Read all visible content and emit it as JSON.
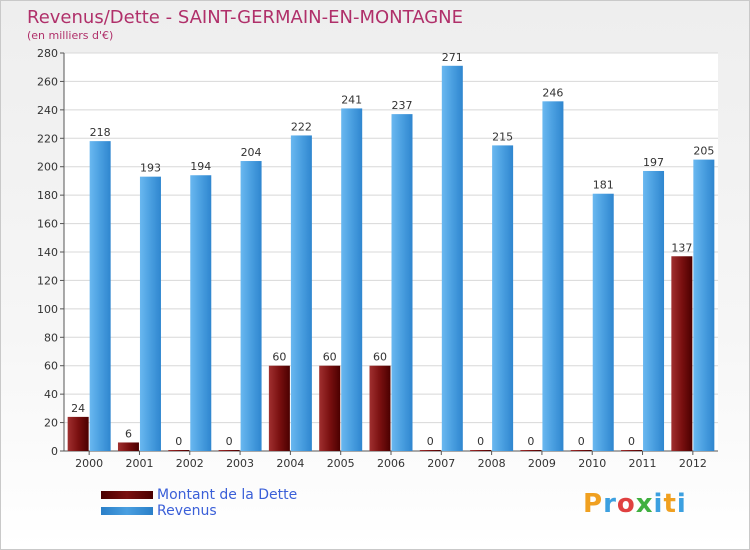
{
  "header": {
    "title": "Revenus/Dette - SAINT-GERMAIN-EN-MONTAGNE",
    "subtitle": "(en milliers d'€)"
  },
  "colors": {
    "dette": "#7a1010",
    "revenus": "#4a9fe0",
    "title": "#b0306a",
    "legend_text": "#3a5fd8"
  },
  "chart_data": {
    "type": "bar",
    "title": "Revenus/Dette - SAINT-GERMAIN-EN-MONTAGNE",
    "subtitle": "(en milliers d'€)",
    "categories": [
      "2000",
      "2001",
      "2002",
      "2003",
      "2004",
      "2005",
      "2006",
      "2007",
      "2008",
      "2009",
      "2010",
      "2011",
      "2012"
    ],
    "series": [
      {
        "name": "Montant de la Dette",
        "values": [
          24,
          6,
          0,
          0,
          60,
          60,
          60,
          0,
          0,
          0,
          0,
          0,
          137
        ]
      },
      {
        "name": "Revenus",
        "values": [
          218,
          193,
          194,
          204,
          222,
          241,
          237,
          271,
          215,
          246,
          181,
          197,
          205
        ]
      }
    ],
    "ylim": [
      0,
      280
    ],
    "yticks": [
      0,
      20,
      40,
      60,
      80,
      100,
      120,
      140,
      160,
      180,
      200,
      220,
      240,
      260,
      280
    ],
    "grid": true,
    "legend_position": "bottom-left"
  },
  "legend": {
    "items": [
      "Montant de la Dette",
      "Revenus"
    ]
  },
  "logo": {
    "text": "Proxiti"
  }
}
